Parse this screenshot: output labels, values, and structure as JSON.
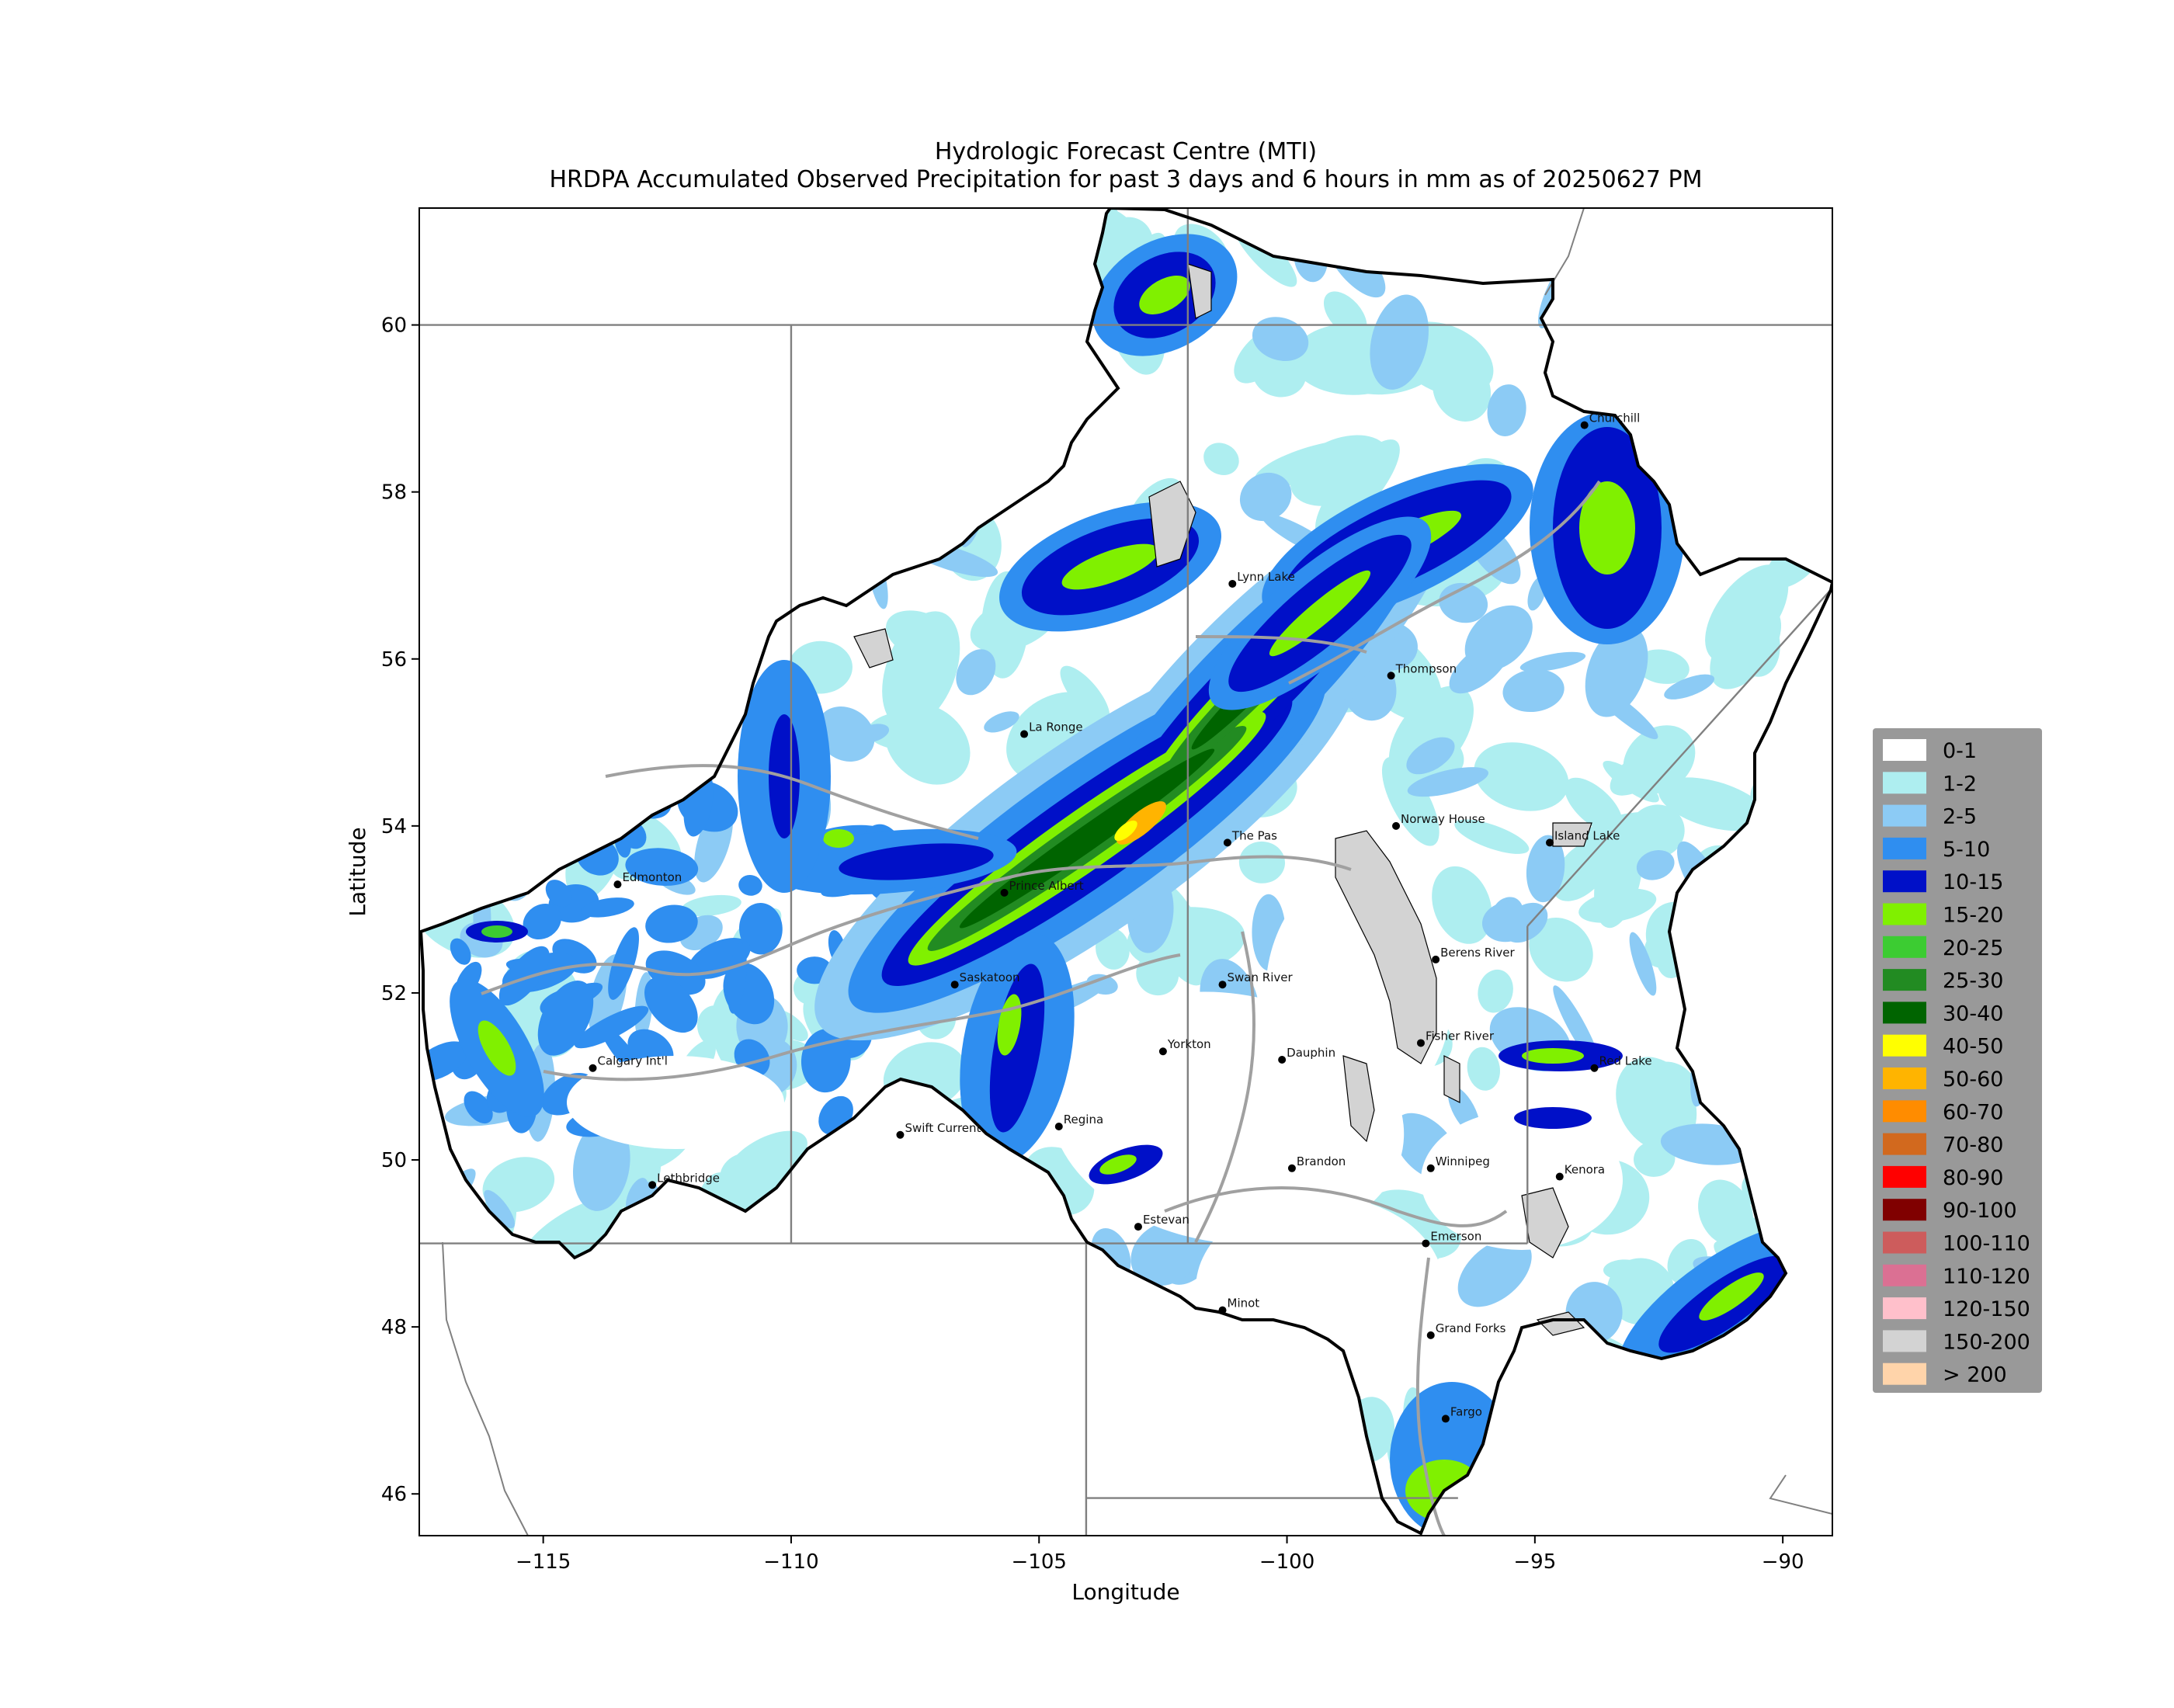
{
  "title": {
    "line1": "Hydrologic Forecast Centre (MTI)",
    "line2": "HRDPA Accumulated Observed Precipitation for past 3 days and 6 hours in mm as of 20250627 PM"
  },
  "axes": {
    "xlabel": "Longitude",
    "ylabel": "Latitude",
    "x_ticks": [
      "−115",
      "−110",
      "−105",
      "−100",
      "−95",
      "−90"
    ],
    "y_ticks": [
      "46",
      "48",
      "50",
      "52",
      "54",
      "56",
      "58",
      "60"
    ]
  },
  "map": {
    "lon_range": [
      -117.5,
      -89.0
    ],
    "lat_range": [
      45.5,
      61.4
    ],
    "cities": [
      {
        "name": "Churchill",
        "lon": -94.0,
        "lat": 58.8
      },
      {
        "name": "Lynn Lake",
        "lon": -101.1,
        "lat": 56.9
      },
      {
        "name": "Thompson",
        "lon": -97.9,
        "lat": 55.8
      },
      {
        "name": "La Ronge",
        "lon": -105.3,
        "lat": 55.1
      },
      {
        "name": "The Pas",
        "lon": -101.2,
        "lat": 53.8
      },
      {
        "name": "Norway House",
        "lon": -97.8,
        "lat": 54.0
      },
      {
        "name": "Island Lake",
        "lon": -94.7,
        "lat": 53.8
      },
      {
        "name": "Edmonton",
        "lon": -113.5,
        "lat": 53.3
      },
      {
        "name": "Prince Albert",
        "lon": -105.7,
        "lat": 53.2
      },
      {
        "name": "Berens River",
        "lon": -97.0,
        "lat": 52.4
      },
      {
        "name": "Saskatoon",
        "lon": -106.7,
        "lat": 52.1
      },
      {
        "name": "Swan River",
        "lon": -101.3,
        "lat": 52.1
      },
      {
        "name": "Fisher River",
        "lon": -97.3,
        "lat": 51.4
      },
      {
        "name": "Yorkton",
        "lon": -102.5,
        "lat": 51.3
      },
      {
        "name": "Dauphin",
        "lon": -100.1,
        "lat": 51.2
      },
      {
        "name": "Red Lake",
        "lon": -93.8,
        "lat": 51.1
      },
      {
        "name": "Calgary Int'l",
        "lon": -114.0,
        "lat": 51.1
      },
      {
        "name": "Regina",
        "lon": -104.6,
        "lat": 50.4
      },
      {
        "name": "Swift Current",
        "lon": -107.8,
        "lat": 50.3
      },
      {
        "name": "Brandon",
        "lon": -99.9,
        "lat": 49.9
      },
      {
        "name": "Winnipeg",
        "lon": -97.1,
        "lat": 49.9
      },
      {
        "name": "Kenora",
        "lon": -94.5,
        "lat": 49.8
      },
      {
        "name": "Lethbridge",
        "lon": -112.8,
        "lat": 49.7
      },
      {
        "name": "Estevan",
        "lon": -103.0,
        "lat": 49.2
      },
      {
        "name": "Emerson",
        "lon": -97.2,
        "lat": 49.0
      },
      {
        "name": "Minot",
        "lon": -101.3,
        "lat": 48.2
      },
      {
        "name": "Grand Forks",
        "lon": -97.1,
        "lat": 47.9
      },
      {
        "name": "Fargo",
        "lon": -96.8,
        "lat": 46.9
      }
    ]
  },
  "legend": {
    "items": [
      {
        "label": "0-1",
        "color": "#ffffff"
      },
      {
        "label": "1-2",
        "color": "#aeeef0"
      },
      {
        "label": "2-5",
        "color": "#8ccbf5"
      },
      {
        "label": "5-10",
        "color": "#2f8ef0"
      },
      {
        "label": "10-15",
        "color": "#0010c8"
      },
      {
        "label": "15-20",
        "color": "#80f000"
      },
      {
        "label": "20-25",
        "color": "#3ccc32"
      },
      {
        "label": "25-30",
        "color": "#228b22"
      },
      {
        "label": "30-40",
        "color": "#006400"
      },
      {
        "label": "40-50",
        "color": "#ffff00"
      },
      {
        "label": "50-60",
        "color": "#ffb400"
      },
      {
        "label": "60-70",
        "color": "#ff8c00"
      },
      {
        "label": "70-80",
        "color": "#d2691e"
      },
      {
        "label": "80-90",
        "color": "#ff0000"
      },
      {
        "label": "90-100",
        "color": "#800000"
      },
      {
        "label": "100-110",
        "color": "#cd5c5c"
      },
      {
        "label": "110-120",
        "color": "#db7093"
      },
      {
        "label": "120-150",
        "color": "#ffc0cb"
      },
      {
        "label": "150-200",
        "color": "#d3d3d3"
      },
      {
        "label": "> 200",
        "color": "#ffd4aa"
      }
    ]
  },
  "colors": {
    "lake": "#d3d3d3",
    "river": "#a0a0a0",
    "border": "#808080",
    "basin_outline": "#000000",
    "legend_bg": "#999999"
  }
}
